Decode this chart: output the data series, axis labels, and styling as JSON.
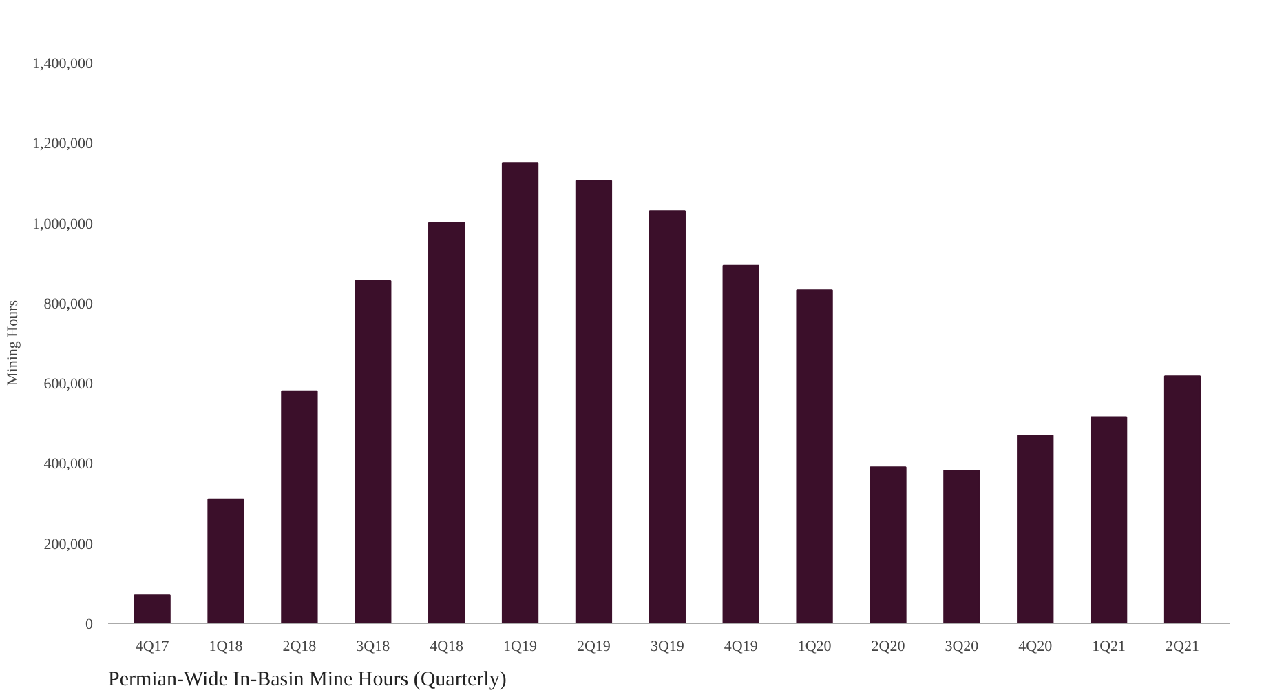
{
  "chart_data": {
    "type": "bar",
    "title": "Permian-Wide In-Basin Mine Hours (Quarterly)",
    "ylabel": "Mining Hours",
    "categories": [
      "4Q17",
      "1Q18",
      "2Q18",
      "3Q18",
      "4Q18",
      "1Q19",
      "2Q19",
      "3Q19",
      "4Q19",
      "1Q20",
      "2Q20",
      "3Q20",
      "4Q20",
      "1Q21",
      "2Q21"
    ],
    "values": [
      70000,
      310000,
      580000,
      855000,
      1000000,
      1150000,
      1105000,
      1030000,
      893000,
      832000,
      390000,
      382000,
      469000,
      515000,
      617000
    ],
    "color": "#3b0f2a",
    "ylim": [
      0,
      1400000
    ],
    "yticks": [
      {
        "value": 0,
        "label": "0"
      },
      {
        "value": 200000,
        "label": "200,000"
      },
      {
        "value": 400000,
        "label": "400,000"
      },
      {
        "value": 600000,
        "label": "600,000"
      },
      {
        "value": 800000,
        "label": "800,000"
      },
      {
        "value": 1000000,
        "label": "1,000,000"
      },
      {
        "value": 1200000,
        "label": "1,200,000"
      },
      {
        "value": 1400000,
        "label": "1,400,000"
      }
    ],
    "grid": false
  }
}
